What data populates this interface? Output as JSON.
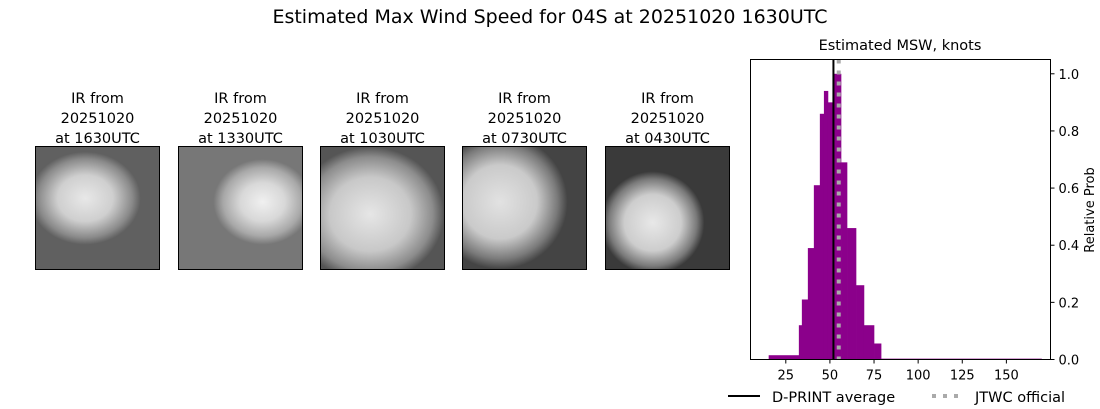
{
  "title": "Estimated Max Wind Speed for 04S at 20251020 1630UTC",
  "panels": [
    {
      "line1": "IR from",
      "line2": "20251020",
      "line3": "at 1630UTC"
    },
    {
      "line1": "IR from",
      "line2": "20251020",
      "line3": "at 1330UTC"
    },
    {
      "line1": "IR from",
      "line2": "20251020",
      "line3": "at 1030UTC"
    },
    {
      "line1": "IR from",
      "line2": "20251020",
      "line3": "at 0730UTC"
    },
    {
      "line1": "IR from",
      "line2": "20251020",
      "line3": "at 0430UTC"
    }
  ],
  "chart_data": {
    "type": "bar",
    "title": "Estimated MSW, knots",
    "xlabel": "",
    "ylabel": "Relative Prob",
    "xlim": [
      5,
      175
    ],
    "ylim": [
      0,
      1.05
    ],
    "xticks": [
      25,
      50,
      75,
      100,
      125,
      150
    ],
    "yticks": [
      "0.0",
      "0.2",
      "0.4",
      "0.6",
      "0.8",
      "1.0"
    ],
    "ytick_side": "right",
    "bar_color": "#8b008b",
    "bins": [
      {
        "from": 15.3,
        "to": 32.4,
        "value": 0.015
      },
      {
        "from": 32.4,
        "to": 34.1,
        "value": 0.12
      },
      {
        "from": 34.1,
        "to": 37.5,
        "value": 0.21
      },
      {
        "from": 37.5,
        "to": 40.9,
        "value": 0.39
      },
      {
        "from": 40.9,
        "to": 44.3,
        "value": 0.61
      },
      {
        "from": 44.3,
        "to": 46.6,
        "value": 0.86
      },
      {
        "from": 46.6,
        "to": 48.9,
        "value": 0.94
      },
      {
        "from": 48.9,
        "to": 52.3,
        "value": 0.9
      },
      {
        "from": 52.3,
        "to": 56.3,
        "value": 1.0
      },
      {
        "from": 56.3,
        "to": 59.7,
        "value": 0.69
      },
      {
        "from": 59.7,
        "to": 64.8,
        "value": 0.46
      },
      {
        "from": 64.8,
        "to": 69.3,
        "value": 0.26
      },
      {
        "from": 69.3,
        "to": 75.0,
        "value": 0.12
      },
      {
        "from": 75.0,
        "to": 79.0,
        "value": 0.056
      },
      {
        "from": 79.0,
        "to": 169.9,
        "value": 0.003
      }
    ],
    "dprint_average": 52,
    "jtwc_official": 55,
    "legend": [
      {
        "label": "D-PRINT average",
        "color": "#000000",
        "style": "solid"
      },
      {
        "label": "JTWC official",
        "color": "#aaaaaa",
        "style": "dotted"
      }
    ],
    "legend_position": "bottom"
  }
}
